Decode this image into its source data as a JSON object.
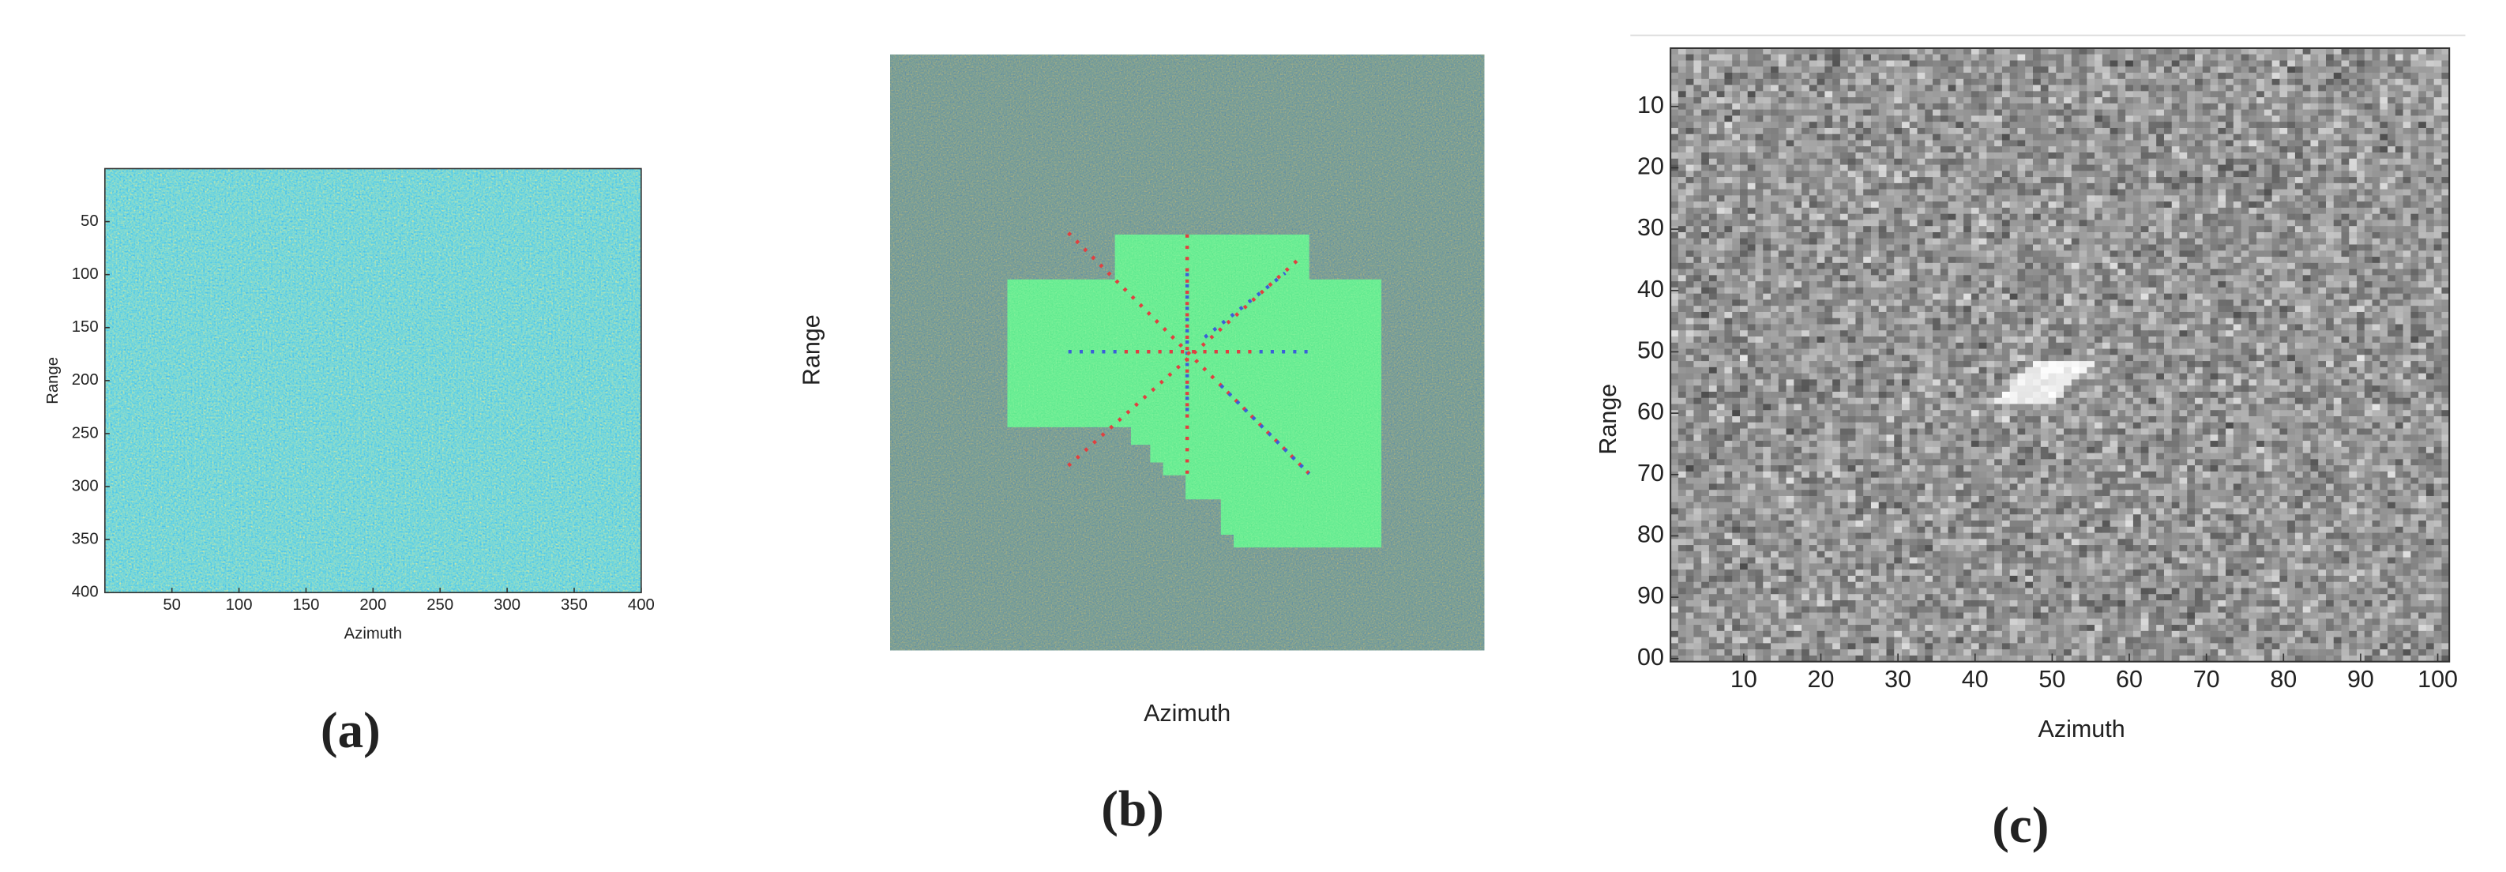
{
  "panels": [
    {
      "caption": "(a)",
      "xlabel": "Azimuth",
      "ylabel": "Range",
      "xlim": [
        0,
        400
      ],
      "ylim": [
        0,
        400
      ],
      "xticks": [
        50,
        100,
        150,
        200,
        250,
        300,
        350,
        400
      ],
      "yticks": [
        50,
        100,
        150,
        200,
        250,
        300,
        350,
        400
      ]
    },
    {
      "caption": "(b)",
      "xlabel": "Azimuth",
      "ylabel": "Range"
    },
    {
      "caption": "(c)",
      "xlabel": "Azimuth",
      "ylabel": "Range",
      "xlim": [
        0.5,
        101.5
      ],
      "ylim": [
        0.5,
        100.5
      ],
      "xticks": [
        10,
        20,
        30,
        40,
        50,
        60,
        70,
        80,
        90,
        100
      ],
      "yticks": [
        10,
        20,
        30,
        40,
        50,
        60,
        70,
        80,
        90,
        {
          "value": 100,
          "label": "00"
        }
      ]
    }
  ]
}
